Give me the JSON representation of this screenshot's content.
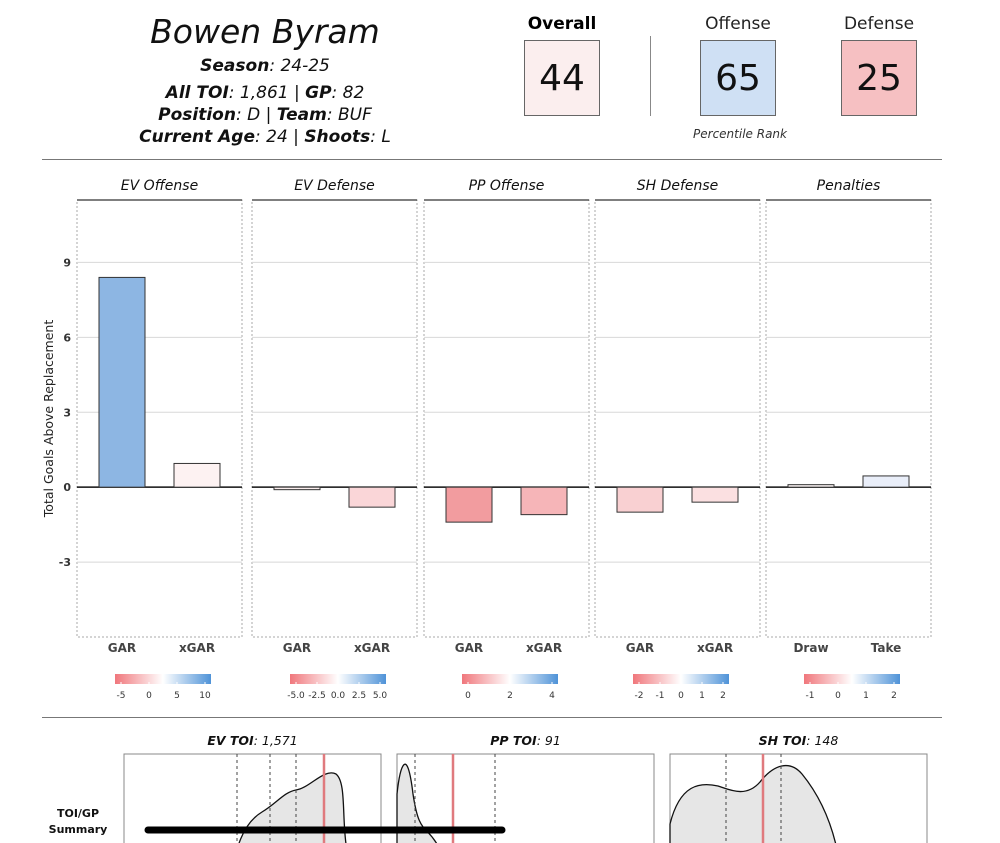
{
  "player": {
    "name": "Bowen Byram",
    "season_label": "Season",
    "season": ": 24-25",
    "toi_label": "All TOI",
    "toi": ": 1,861 | ",
    "gp_label": "GP",
    "gp": ": 82",
    "position_label": "Position",
    "position": ": D | ",
    "team_label": "Team",
    "team": ": BUF",
    "age_label": "Current Age",
    "age": ": 24 | ",
    "shoots_label": "Shoots",
    "shoots": ": L"
  },
  "scores": {
    "overall": {
      "label": "Overall",
      "value": "44",
      "color": "#fbeeee"
    },
    "offense": {
      "label": "Offense",
      "value": "65",
      "color": "#cfe0f4"
    },
    "defense": {
      "label": "Defense",
      "value": "25",
      "color": "#f6c0c2"
    },
    "footnote": "Percentile Rank"
  },
  "chart_data": {
    "type": "bar",
    "ylabel": "Total Goals Above Replacement",
    "ylim": [
      -6,
      11.5
    ],
    "yticks": [
      -3,
      0,
      3,
      6,
      9
    ],
    "grid": true,
    "facets": [
      {
        "title": "EV Offense",
        "categories": [
          "GAR",
          "xGAR"
        ],
        "values": [
          8.4,
          0.95
        ],
        "colors": [
          "#8db6e3",
          "#fdf2f2"
        ],
        "scale": {
          "ticks": [
            "-5",
            "0",
            "5",
            "10"
          ]
        }
      },
      {
        "title": "EV Defense",
        "categories": [
          "GAR",
          "xGAR"
        ],
        "values": [
          -0.1,
          -0.8
        ],
        "colors": [
          "#fbeeee",
          "#fad6d8"
        ],
        "scale": {
          "ticks": [
            "-5.0",
            "-2.5",
            "0.0",
            "2.5",
            "5.0"
          ]
        }
      },
      {
        "title": "PP Offense",
        "categories": [
          "GAR",
          "xGAR"
        ],
        "values": [
          -1.4,
          -1.1
        ],
        "colors": [
          "#f29c9f",
          "#f6b5b8"
        ],
        "scale": {
          "ticks": [
            "0",
            "2",
            "4"
          ]
        }
      },
      {
        "title": "SH Defense",
        "categories": [
          "GAR",
          "xGAR"
        ],
        "values": [
          -1.0,
          -0.6
        ],
        "colors": [
          "#f9d0d2",
          "#fbe0e1"
        ],
        "scale": {
          "ticks": [
            "-2",
            "-1",
            "0",
            "1",
            "2"
          ]
        }
      },
      {
        "title": "Penalties",
        "categories": [
          "Draw",
          "Take"
        ],
        "values": [
          0.1,
          0.45
        ],
        "colors": [
          "#fbf4f4",
          "#e9eef9"
        ],
        "scale": {
          "ticks": [
            "-1",
            "0",
            "1",
            "2"
          ]
        }
      }
    ]
  },
  "toi_section": {
    "row_label_1": "TOI/GP",
    "row_label_2": "Summary",
    "panels": [
      {
        "label": "EV TOI",
        "value": ": 1,571"
      },
      {
        "label": "PP TOI",
        "value": ": 91"
      },
      {
        "label": "SH TOI",
        "value": ": 148"
      }
    ]
  }
}
